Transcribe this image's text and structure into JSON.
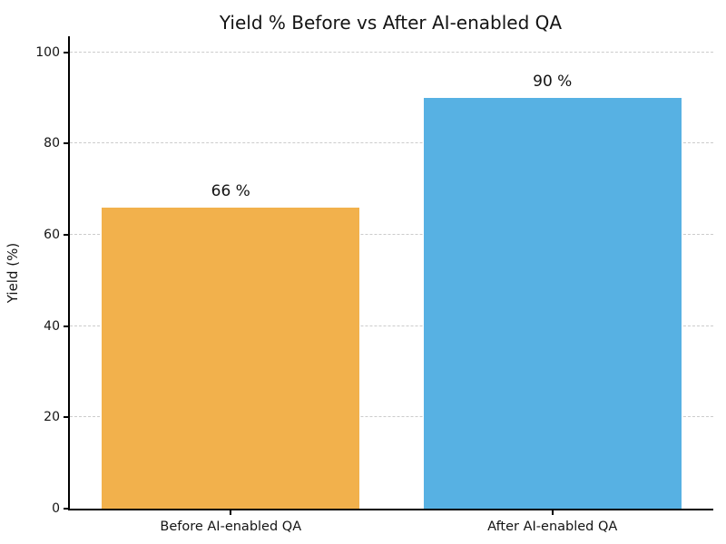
{
  "figure": {
    "title": "Yield % Before vs After AI-enabled QA",
    "background_color": "#ffffff",
    "text_color": "#141414"
  },
  "chart_data": {
    "type": "bar",
    "title": "Yield % Before vs After AI-enabled QA",
    "categories": [
      "Before AI-enabled QA",
      "After AI-enabled QA"
    ],
    "values": [
      66,
      90
    ],
    "value_labels": [
      "66 %",
      "90 %"
    ],
    "bar_colors": [
      "#f2b14c",
      "#57b1e3"
    ],
    "xlabel": "",
    "ylabel": "Yield (%)",
    "ylim": [
      0,
      103.5
    ],
    "yticks": [
      0,
      20,
      40,
      60,
      80,
      100
    ],
    "grid": "horizontal-dashed",
    "grid_color": "#cccccc",
    "spine_color": "#000000",
    "legend_position": "none",
    "bar_width_fraction": 0.8
  }
}
